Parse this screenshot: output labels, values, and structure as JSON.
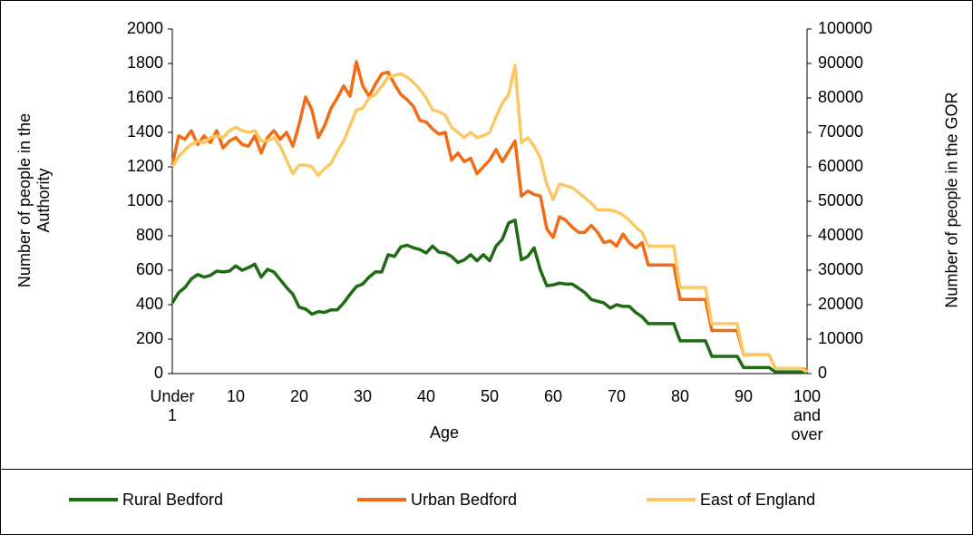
{
  "chart_data": {
    "type": "line",
    "xlabel": "Age",
    "ylabel": "Number of people in the Authority",
    "y2label": "Number of people in the GOR",
    "categories": [
      "Under 1",
      null,
      null,
      null,
      null,
      null,
      null,
      null,
      null,
      null,
      "10",
      null,
      null,
      null,
      null,
      null,
      null,
      null,
      null,
      null,
      "20",
      null,
      null,
      null,
      null,
      null,
      null,
      null,
      null,
      null,
      "30",
      null,
      null,
      null,
      null,
      null,
      null,
      null,
      null,
      null,
      "40",
      null,
      null,
      null,
      null,
      null,
      null,
      null,
      null,
      null,
      "50",
      null,
      null,
      null,
      null,
      null,
      null,
      null,
      null,
      null,
      "60",
      null,
      null,
      null,
      null,
      null,
      null,
      null,
      null,
      null,
      "70",
      null,
      null,
      null,
      null,
      null,
      null,
      null,
      null,
      null,
      "80",
      null,
      null,
      null,
      null,
      null,
      null,
      null,
      null,
      null,
      "90",
      null,
      null,
      null,
      null,
      null,
      null,
      null,
      null,
      null,
      "100 and over"
    ],
    "series": [
      {
        "name": "Rural Bedford",
        "color": "#1e6b14",
        "values": [
          410,
          470,
          500,
          550,
          575,
          560,
          570,
          595,
          590,
          595,
          625,
          600,
          615,
          635,
          560,
          605,
          590,
          545,
          500,
          460,
          385,
          375,
          345,
          360,
          355,
          370,
          370,
          410,
          460,
          505,
          520,
          560,
          590,
          590,
          690,
          680,
          735,
          745,
          730,
          720,
          700,
          740,
          705,
          700,
          680,
          645,
          660,
          690,
          655,
          690,
          655,
          740,
          780,
          875,
          890,
          660,
          680,
          730,
          600,
          510,
          515,
          525,
          520,
          520,
          495,
          470,
          430,
          420,
          410,
          380,
          400,
          390,
          390,
          355,
          330,
          290,
          290,
          290,
          290,
          290,
          190,
          190,
          190,
          190,
          190,
          100,
          100,
          100,
          100,
          100,
          35,
          35,
          35,
          35,
          35,
          10,
          10,
          10,
          10,
          10,
          5
        ]
      },
      {
        "name": "Urban Bedford",
        "color": "#f26b15",
        "values": [
          1210,
          1380,
          1360,
          1410,
          1330,
          1380,
          1340,
          1410,
          1310,
          1350,
          1370,
          1330,
          1320,
          1380,
          1280,
          1370,
          1410,
          1360,
          1400,
          1320,
          1450,
          1605,
          1530,
          1370,
          1440,
          1540,
          1600,
          1670,
          1610,
          1810,
          1670,
          1610,
          1680,
          1740,
          1750,
          1680,
          1620,
          1590,
          1550,
          1470,
          1460,
          1420,
          1390,
          1400,
          1240,
          1280,
          1230,
          1250,
          1160,
          1200,
          1240,
          1300,
          1230,
          1290,
          1350,
          1030,
          1060,
          1040,
          1030,
          840,
          790,
          910,
          890,
          850,
          820,
          820,
          860,
          820,
          760,
          770,
          740,
          810,
          760,
          730,
          760,
          630,
          630,
          630,
          630,
          630,
          430,
          430,
          430,
          430,
          430,
          250,
          250,
          250,
          250,
          250,
          110,
          110,
          110,
          110,
          110,
          30,
          30,
          30,
          30,
          30,
          20
        ]
      },
      {
        "name": "East of England",
        "color": "#fcc866",
        "axis": "y2",
        "values": [
          60000,
          63000,
          65000,
          66500,
          67500,
          67000,
          68500,
          69000,
          68500,
          70500,
          71500,
          70500,
          70000,
          70500,
          67500,
          67500,
          68500,
          66000,
          62000,
          58000,
          60500,
          60500,
          60000,
          57500,
          59500,
          61000,
          64500,
          67500,
          72000,
          76500,
          77000,
          80000,
          81000,
          83500,
          86000,
          86500,
          87000,
          86000,
          84500,
          82500,
          80000,
          76500,
          76000,
          75000,
          71500,
          70000,
          68500,
          70000,
          68500,
          69000,
          70000,
          74500,
          78500,
          81000,
          89500,
          67000,
          68500,
          66000,
          62500,
          55000,
          50500,
          55000,
          54500,
          54000,
          52500,
          51000,
          49500,
          47500,
          47500,
          47500,
          47000,
          46000,
          44500,
          42500,
          41000,
          37000,
          37000,
          37000,
          37000,
          37000,
          25000,
          25000,
          25000,
          25000,
          25000,
          14500,
          14500,
          14500,
          14500,
          14500,
          5500,
          5500,
          5500,
          5500,
          5500,
          1500,
          1500,
          1500,
          1500,
          1500,
          500
        ]
      }
    ],
    "ylim": [
      0,
      2000
    ],
    "yticks": [
      0,
      200,
      400,
      600,
      800,
      1000,
      1200,
      1400,
      1600,
      1800,
      2000
    ],
    "y2lim": [
      0,
      100000
    ],
    "y2ticks": [
      0,
      10000,
      20000,
      30000,
      40000,
      50000,
      60000,
      70000,
      80000,
      90000,
      100000
    ],
    "legend": "bottom"
  }
}
